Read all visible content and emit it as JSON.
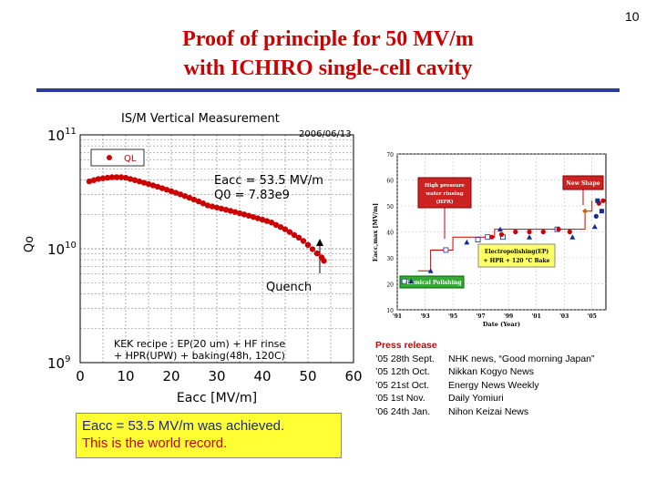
{
  "page_number": "10",
  "title_line1": "Proof of principle for 50 MV/m",
  "title_line2": "with ICHIRO single-cell cavity",
  "accent_red": "#cc0000",
  "rule_color": "#2b3a9c",
  "callout": {
    "line1": "Eacc = 53.5 MV/m was achieved.",
    "line2": "This is the world record.",
    "background": "#ffff33"
  },
  "press": {
    "header": "Press release",
    "items": [
      {
        "date": "’05 28th Sept.",
        "text": "NHK news, “Good morning Japan”"
      },
      {
        "date": "’05 12th Oct.",
        "text": "Nikkan Kogyo News"
      },
      {
        "date": "’05 21st Oct.",
        "text": "Energy News Weekly"
      },
      {
        "date": "’05 1st  Nov.",
        "text": "Daily Yomiuri"
      },
      {
        "date": "’06 24th Jan.",
        "text": "Nihon Keizai News"
      }
    ]
  },
  "chart_data": [
    {
      "type": "scatter",
      "title": "IS/M Vertical Measurement",
      "date": "2006/06/13",
      "xlabel": "Eacc [MV/m]",
      "ylabel": "Qo",
      "xlim": [
        0,
        60
      ],
      "x_ticks": [
        "0",
        "10",
        "20",
        "30",
        "40",
        "50",
        "60"
      ],
      "y_scale": "log",
      "ylim": [
        1000000000.0,
        100000000000.0
      ],
      "y_ticks": [
        {
          "value": 1000000000.0,
          "base": "10",
          "exp": "9"
        },
        {
          "value": 10000000000.0,
          "base": "10",
          "exp": "10"
        },
        {
          "value": 100000000000.0,
          "base": "10",
          "exp": "11"
        }
      ],
      "legend": {
        "label": "QL",
        "position": "top-left"
      },
      "marker_color": "#cc0000",
      "annotations": {
        "eacc": "Eacc = 53.5 MV/m",
        "q0": "Q0 = 7.83e9",
        "quench": "Quench",
        "recipe_line1": "KEK recipe : EP(20 um) + HF rinse",
        "recipe_line2": "+ HPR(UPW) + baking(48h, 120C)"
      },
      "series": [
        {
          "x": [
            2,
            3,
            4,
            5,
            6,
            7,
            8,
            9,
            10,
            11,
            12,
            13,
            14,
            15,
            16,
            17,
            18,
            19,
            20,
            21,
            22,
            23,
            24,
            25,
            26,
            27,
            28,
            29,
            30,
            31,
            32,
            33,
            34,
            35,
            36,
            37,
            38,
            39,
            40,
            41,
            42,
            43,
            44,
            45,
            46,
            47,
            48,
            49,
            50,
            51,
            52,
            53,
            53.5
          ],
          "y": [
            39000000000.0,
            40000000000.0,
            41000000000.0,
            41500000000.0,
            42000000000.0,
            42500000000.0,
            42500000000.0,
            42500000000.0,
            42000000000.0,
            41000000000.0,
            40000000000.0,
            39000000000.0,
            38000000000.0,
            37000000000.0,
            36000000000.0,
            35000000000.0,
            34000000000.0,
            33000000000.0,
            32000000000.0,
            31000000000.0,
            30000000000.0,
            29000000000.0,
            28000000000.0,
            27000000000.0,
            26000000000.0,
            25000000000.0,
            24000000000.0,
            23500000000.0,
            23000000000.0,
            22500000000.0,
            22000000000.0,
            21500000000.0,
            21000000000.0,
            20500000000.0,
            20000000000.0,
            19500000000.0,
            19000000000.0,
            18500000000.0,
            18000000000.0,
            17500000000.0,
            17000000000.0,
            16200000000.0,
            15500000000.0,
            14800000000.0,
            14000000000.0,
            13200000000.0,
            12500000000.0,
            11700000000.0,
            10800000000.0,
            9900000000.0,
            9100000000.0,
            8400000000.0,
            7830000000.0
          ]
        }
      ]
    },
    {
      "type": "scatter",
      "title": "",
      "xlabel": "Date (Year)",
      "ylabel": "Eacc,max [MV/m]",
      "x_ticks": [
        "'91",
        "'93",
        "'95",
        "'97",
        "'99",
        "'01",
        "'03",
        "'05"
      ],
      "xlim": [
        1991,
        2006
      ],
      "ylim": [
        10,
        70
      ],
      "y_ticks": [
        "10",
        "20",
        "30",
        "40",
        "50",
        "60",
        "70"
      ],
      "annotations": {
        "hpr": "High pressure water rinsing (HPR)",
        "new_shape": "New Shape",
        "ep_line1": "Electropolishing(EP)",
        "ep_line2": "+ HPR + 120 °C Bake",
        "cp": "Chemical Polishing"
      },
      "series": [
        {
          "marker": "square-open",
          "color": "#1a2a8a",
          "x": [
            1991.5,
            1994.5,
            1996.8,
            1997.5,
            1998.6,
            2002.5
          ],
          "y": [
            21,
            33,
            37,
            38,
            38,
            41
          ]
        },
        {
          "marker": "triangle",
          "color": "#1a2a8a",
          "x": [
            1992,
            1993.4,
            1996,
            1998.4,
            2000.5,
            2003.6,
            2005.2
          ],
          "y": [
            21,
            25,
            36,
            41,
            38,
            38,
            42
          ]
        },
        {
          "marker": "circle",
          "color": "#cc0000",
          "x": [
            1997.8,
            1998.5,
            1999.5,
            2000.5,
            2001.5,
            2002.6,
            2003.4,
            2005.5,
            2005.8
          ],
          "y": [
            38,
            39,
            40,
            40,
            40,
            41,
            40,
            51,
            52
          ]
        },
        {
          "marker": "diamond",
          "color": "#cc6600",
          "x": [
            2004.5
          ],
          "y": [
            48
          ]
        },
        {
          "marker": "square",
          "color": "#1a2a8a",
          "x": [
            2005.4,
            2005.7
          ],
          "y": [
            52,
            48
          ]
        },
        {
          "marker": "circle",
          "color": "#1a2a8a",
          "x": [
            2005.3
          ],
          "y": [
            46
          ]
        }
      ]
    }
  ]
}
